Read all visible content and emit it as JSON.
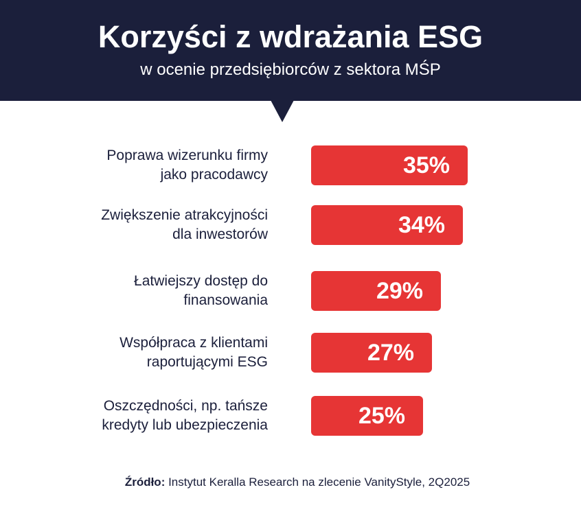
{
  "header": {
    "title": "Korzyści z wdrażania ESG",
    "subtitle": "w ocenie przedsiębiorców z sektora MŚP"
  },
  "colors": {
    "header_bg": "#1b1f3b",
    "bar": "#e63535"
  },
  "chart_data": {
    "type": "bar",
    "orientation": "horizontal",
    "title": "Korzyści z wdrażania ESG",
    "subtitle": "w ocenie przedsiębiorców z sektora MŚP",
    "categories": [
      [
        "Poprawa wizerunku firmy",
        "jako pracodawcy"
      ],
      [
        "Zwiększenie atrakcyjności",
        "dla inwestorów"
      ],
      [
        "Łatwiejszy dostęp do",
        "finansowania"
      ],
      [
        "Współpraca z klientami",
        "raportującymi ESG"
      ],
      [
        "Oszczędności, np. tańsze",
        "kredyty lub ubezpieczenia"
      ]
    ],
    "values": [
      35,
      34,
      29,
      27,
      25
    ],
    "value_labels": [
      "35%",
      "34%",
      "29%",
      "27%",
      "25%"
    ],
    "unit": "%"
  },
  "source": {
    "label": "Źródło:",
    "text": " Instytut Keralla Research na zlecenie VanityStyle, 2Q2025"
  }
}
